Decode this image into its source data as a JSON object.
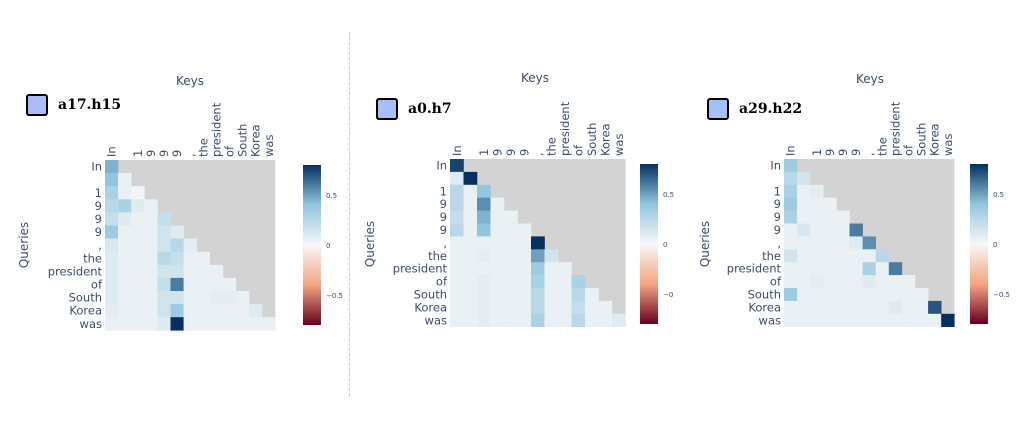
{
  "colorscale": {
    "negative_end": "#67001f",
    "neg_mid": "#f4a582",
    "zero": "#f7f7f7",
    "pos_mid": "#92c5de",
    "positive_end": "#053061",
    "mask_color": "#d3d3d3",
    "badge_color": "#a6c0f5"
  },
  "chart_data": [
    {
      "type": "heatmap",
      "head": "a17.h15",
      "xlabel": "Keys",
      "ylabel": "Queries",
      "x_tokens": [
        "In",
        "",
        "1",
        "9",
        "9",
        "9",
        ",",
        "the",
        "president",
        "of",
        "South",
        "Korea",
        "was"
      ],
      "y_tokens": [
        "In",
        "",
        "1",
        "9",
        "9",
        "9",
        ",",
        "the",
        "president",
        "of",
        "South",
        "Korea",
        "was"
      ],
      "masked": "upper-triangle",
      "zmin": -0.8,
      "zmax": 0.8,
      "colorbar_ticks": [
        0.5,
        0,
        -0.5
      ],
      "colorbar_tick_labels": [
        "0.5",
        "0",
        "−0.5"
      ],
      "z": [
        [
          0.45
        ],
        [
          0.4,
          0.05
        ],
        [
          0.3,
          0.05,
          0.02
        ],
        [
          0.25,
          0.3,
          0.1,
          0.05
        ],
        [
          0.2,
          0.1,
          0.05,
          0.05,
          0.2
        ],
        [
          0.35,
          0.05,
          0.05,
          0.05,
          0.15,
          0.1
        ],
        [
          0.12,
          0.05,
          0.05,
          0.05,
          0.15,
          0.25,
          0.08
        ],
        [
          0.1,
          0.05,
          0.05,
          0.05,
          0.25,
          0.2,
          0.05,
          0.05
        ],
        [
          0.1,
          0.05,
          0.05,
          0.05,
          0.15,
          0.15,
          0.05,
          0.05,
          0.05
        ],
        [
          0.1,
          0.05,
          0.05,
          0.05,
          0.2,
          0.6,
          0.05,
          0.05,
          0.05,
          0.05
        ],
        [
          0.1,
          0.05,
          0.05,
          0.05,
          0.15,
          0.15,
          0.05,
          0.05,
          0.08,
          0.08,
          0.05
        ],
        [
          0.08,
          0.05,
          0.05,
          0.05,
          0.15,
          0.35,
          0.05,
          0.05,
          0.05,
          0.05,
          0.05,
          0.1
        ],
        [
          0.05,
          0.05,
          0.05,
          0.05,
          0.1,
          0.8,
          0.05,
          0.05,
          0.05,
          0.05,
          0.05,
          0.05,
          0.05
        ]
      ]
    },
    {
      "type": "heatmap",
      "head": "a0.h7",
      "xlabel": "Keys",
      "ylabel": "Queries",
      "x_tokens": [
        "In",
        "",
        "1",
        "9",
        "9",
        "9",
        ",",
        "the",
        "president",
        "of",
        "South",
        "Korea",
        "was"
      ],
      "y_tokens": [
        "In",
        "",
        "1",
        "9",
        "9",
        "9",
        ",",
        "the",
        "president",
        "of",
        "South",
        "Korea",
        "was"
      ],
      "masked": "upper-triangle",
      "zmin": -0.8,
      "zmax": 0.8,
      "colorbar_ticks": [
        0.5,
        0,
        -0.5
      ],
      "colorbar_tick_labels": [
        "0.5",
        "0",
        "−0.5"
      ],
      "z": [
        [
          0.75
        ],
        [
          0.1,
          0.9
        ],
        [
          0.25,
          0.05,
          0.4
        ],
        [
          0.25,
          0.05,
          0.55,
          0.05
        ],
        [
          0.2,
          0.05,
          0.45,
          0.05,
          0.05
        ],
        [
          0.25,
          0.05,
          0.4,
          0.05,
          0.05,
          0.05
        ],
        [
          0.05,
          0.05,
          0.05,
          0.05,
          0.05,
          0.05,
          0.85
        ],
        [
          0.05,
          0.05,
          0.08,
          0.05,
          0.05,
          0.05,
          0.5,
          0.15
        ],
        [
          0.05,
          0.05,
          0.05,
          0.05,
          0.05,
          0.05,
          0.35,
          0.05,
          0.05
        ],
        [
          0.05,
          0.05,
          0.08,
          0.05,
          0.05,
          0.05,
          0.3,
          0.05,
          0.05,
          0.3
        ],
        [
          0.05,
          0.05,
          0.08,
          0.05,
          0.05,
          0.05,
          0.25,
          0.05,
          0.05,
          0.25,
          0.05
        ],
        [
          0.05,
          0.05,
          0.08,
          0.05,
          0.05,
          0.05,
          0.25,
          0.05,
          0.05,
          0.2,
          0.05,
          0.05
        ],
        [
          0.05,
          0.05,
          0.08,
          0.05,
          0.05,
          0.05,
          0.3,
          0.05,
          0.05,
          0.25,
          0.05,
          0.05,
          0.1
        ]
      ]
    },
    {
      "type": "heatmap",
      "head": "a29.h22",
      "xlabel": "Keys",
      "ylabel": "Queries",
      "x_tokens": [
        "In",
        "",
        "1",
        "9",
        "9",
        "9",
        ",",
        "the",
        "president",
        "of",
        "South",
        "Korea",
        "was"
      ],
      "y_tokens": [
        "In",
        "",
        "1",
        "9",
        "9",
        "9",
        ",",
        "the",
        "president",
        "of",
        "South",
        "Korea",
        "was"
      ],
      "masked": "upper-triangle",
      "zmin": -0.8,
      "zmax": 0.8,
      "colorbar_ticks": [
        0.5,
        0,
        -0.5
      ],
      "colorbar_tick_labels": [
        "0.5",
        "0",
        "−0.5"
      ],
      "z": [
        [
          0.35
        ],
        [
          0.25,
          0.15
        ],
        [
          0.3,
          0.05,
          0.08
        ],
        [
          0.35,
          0.05,
          0.05,
          0.05
        ],
        [
          0.3,
          0.05,
          0.05,
          0.05,
          0.05
        ],
        [
          0.05,
          0.12,
          0.05,
          0.05,
          0.05,
          0.6
        ],
        [
          0.05,
          0.05,
          0.05,
          0.05,
          0.05,
          0.1,
          0.55
        ],
        [
          0.15,
          0.05,
          0.05,
          0.05,
          0.05,
          0.05,
          0.05,
          0.25
        ],
        [
          0.05,
          0.05,
          0.05,
          0.05,
          0.05,
          0.05,
          0.3,
          0.05,
          0.6
        ],
        [
          0.05,
          0.05,
          0.08,
          0.05,
          0.05,
          0.05,
          0.1,
          0.05,
          0.05,
          0.05
        ],
        [
          0.35,
          0.05,
          0.05,
          0.05,
          0.05,
          0.05,
          0.05,
          0.05,
          0.05,
          0.05,
          0.05
        ],
        [
          0.05,
          0.05,
          0.05,
          0.05,
          0.05,
          0.05,
          0.05,
          0.05,
          0.1,
          0.05,
          0.05,
          0.7
        ],
        [
          0.05,
          0.05,
          0.05,
          0.05,
          0.05,
          0.05,
          0.05,
          0.05,
          0.05,
          0.05,
          0.05,
          0.05,
          0.95
        ]
      ]
    }
  ]
}
